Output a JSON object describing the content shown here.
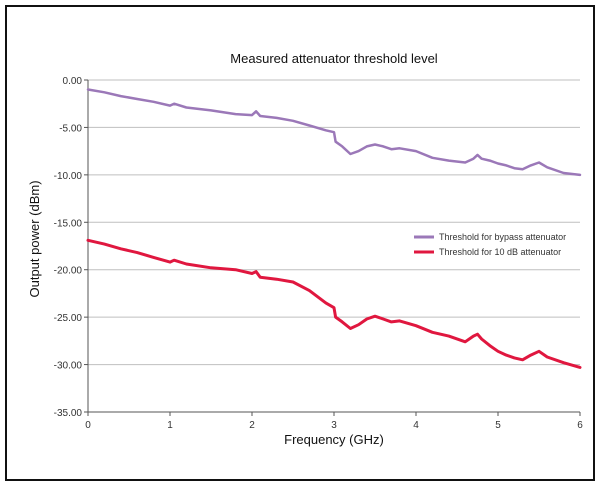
{
  "chart_data": {
    "type": "line",
    "title": "Measured attenuator threshold level",
    "xlabel": "Frequency  (GHz)",
    "ylabel": "Output power (dBm)",
    "xlim": [
      0,
      6
    ],
    "ylim": [
      -35,
      0
    ],
    "x_ticks": [
      "0",
      "1",
      "2",
      "3",
      "4",
      "5",
      "6"
    ],
    "y_ticks": [
      "0.00",
      "-5.00",
      "-10.00",
      "-15.00",
      "-20.00",
      "-25.00",
      "-30.00",
      "-35.00"
    ],
    "grid": "horizontal",
    "legend_position": "right",
    "series": [
      {
        "name": "Threshold for bypass attenuator",
        "color": "#9b78b8",
        "x": [
          0,
          0.2,
          0.4,
          0.6,
          0.8,
          1.0,
          1.05,
          1.2,
          1.5,
          1.8,
          2.0,
          2.05,
          2.1,
          2.3,
          2.5,
          2.7,
          2.9,
          3.0,
          3.02,
          3.1,
          3.2,
          3.3,
          3.4,
          3.5,
          3.6,
          3.7,
          3.8,
          4.0,
          4.2,
          4.4,
          4.6,
          4.7,
          4.75,
          4.8,
          4.9,
          5.0,
          5.1,
          5.2,
          5.3,
          5.4,
          5.5,
          5.6,
          5.8,
          6.0
        ],
        "y": [
          -1.0,
          -1.3,
          -1.7,
          -2.0,
          -2.3,
          -2.7,
          -2.5,
          -2.9,
          -3.2,
          -3.6,
          -3.7,
          -3.3,
          -3.8,
          -4.0,
          -4.3,
          -4.8,
          -5.3,
          -5.5,
          -6.5,
          -7.0,
          -7.8,
          -7.5,
          -7.0,
          -6.8,
          -7.0,
          -7.3,
          -7.2,
          -7.5,
          -8.2,
          -8.5,
          -8.7,
          -8.3,
          -7.9,
          -8.3,
          -8.5,
          -8.8,
          -9.0,
          -9.3,
          -9.4,
          -9.0,
          -8.7,
          -9.2,
          -9.8,
          -10.0
        ]
      },
      {
        "name": "Threshold for 10 dB attenuator",
        "color": "#e0173f",
        "x": [
          0,
          0.2,
          0.4,
          0.6,
          0.8,
          1.0,
          1.05,
          1.2,
          1.5,
          1.8,
          2.0,
          2.05,
          2.1,
          2.3,
          2.5,
          2.7,
          2.9,
          3.0,
          3.02,
          3.1,
          3.2,
          3.3,
          3.4,
          3.5,
          3.6,
          3.7,
          3.8,
          4.0,
          4.2,
          4.4,
          4.6,
          4.7,
          4.75,
          4.8,
          4.9,
          5.0,
          5.1,
          5.2,
          5.3,
          5.4,
          5.5,
          5.6,
          5.8,
          6.0
        ],
        "y": [
          -16.9,
          -17.3,
          -17.8,
          -18.2,
          -18.7,
          -19.2,
          -19.0,
          -19.4,
          -19.8,
          -20.0,
          -20.4,
          -20.2,
          -20.8,
          -21.0,
          -21.3,
          -22.2,
          -23.5,
          -24.0,
          -25.0,
          -25.5,
          -26.2,
          -25.8,
          -25.2,
          -24.9,
          -25.2,
          -25.5,
          -25.4,
          -25.9,
          -26.6,
          -27.0,
          -27.6,
          -27.0,
          -26.8,
          -27.3,
          -28.0,
          -28.6,
          -29.0,
          -29.3,
          -29.5,
          -29.0,
          -28.6,
          -29.2,
          -29.8,
          -30.3
        ]
      }
    ]
  }
}
